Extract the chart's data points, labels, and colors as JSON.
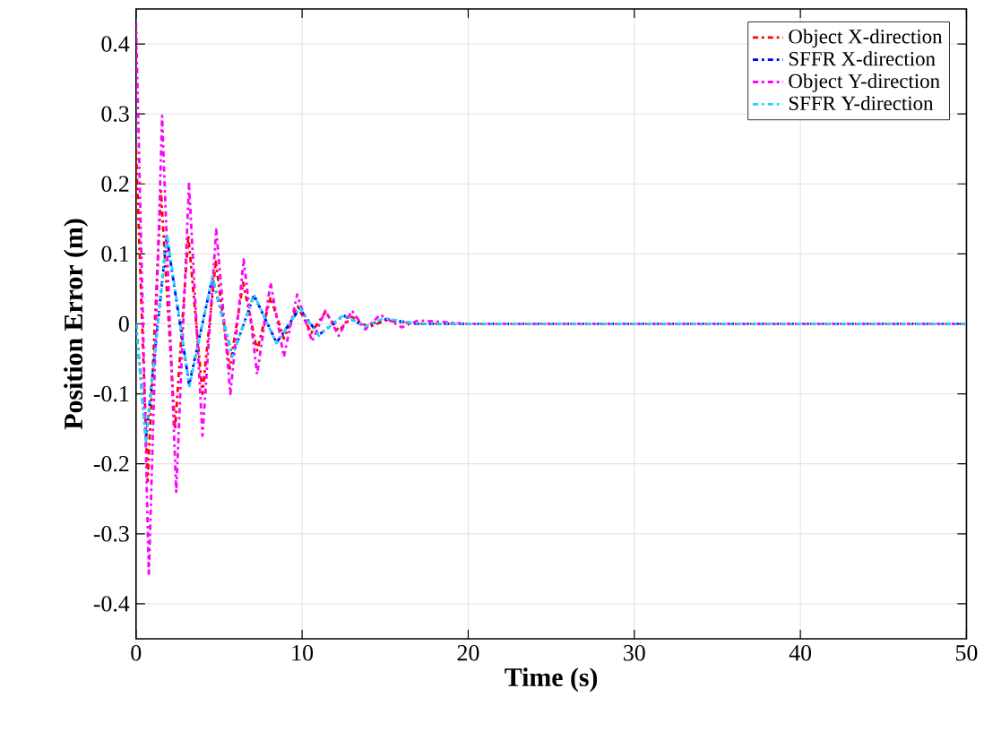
{
  "chart_data": {
    "type": "line",
    "xlabel": "Time (s)",
    "ylabel": "Position Error (m)",
    "xlim": [
      0,
      50
    ],
    "ylim": [
      -0.45,
      0.45
    ],
    "xticks": [
      0,
      10,
      20,
      30,
      40,
      50
    ],
    "yticks": [
      -0.4,
      -0.3,
      -0.2,
      -0.1,
      0,
      0.1,
      0.2,
      0.3,
      0.4
    ],
    "grid": true,
    "legend": "top right",
    "line_style": "dashdot",
    "marker": "none",
    "series": [
      {
        "name": "Object X-direction",
        "color": "#ff0000",
        "x": [
          0,
          0.7,
          1.5,
          2.35,
          3.15,
          4.0,
          4.8,
          5.64,
          6.45,
          7.29,
          8.1,
          8.9,
          9.74,
          10.55,
          11.4,
          12.2,
          13,
          14,
          15,
          17,
          50
        ],
        "values": [
          0.25,
          -0.225,
          0.19,
          -0.15,
          0.127,
          -0.1,
          0.089,
          -0.064,
          0.059,
          -0.038,
          0.038,
          -0.021,
          0.025,
          -0.013,
          0.017,
          -0.01,
          0.01,
          -0.005,
          0.005,
          0,
          0
        ]
      },
      {
        "name": "SFFR X-direction",
        "color": "#0000ff",
        "x": [
          0,
          0.6,
          1.85,
          3.2,
          4.6,
          5.8,
          7.1,
          8.46,
          9.85,
          11.0,
          12.5,
          13.8,
          14.9,
          17,
          50
        ],
        "values": [
          0,
          -0.165,
          0.125,
          -0.087,
          0.066,
          -0.046,
          0.041,
          -0.027,
          0.022,
          -0.016,
          0.012,
          -0.004,
          0.007,
          0,
          0
        ]
      },
      {
        "name": "Object Y-direction",
        "color": "#ff00ff",
        "x": [
          0,
          0.77,
          1.57,
          2.42,
          3.19,
          4.0,
          4.83,
          5.68,
          6.48,
          7.29,
          8.1,
          8.9,
          9.7,
          10.6,
          11.4,
          12.2,
          13.0,
          13.8,
          14.7,
          16,
          17,
          20,
          50
        ],
        "values": [
          0.43,
          -0.36,
          0.297,
          -0.24,
          0.2,
          -0.16,
          0.135,
          -0.1,
          0.092,
          -0.072,
          0.059,
          -0.047,
          0.042,
          -0.025,
          0.019,
          -0.017,
          0.019,
          -0.008,
          0.013,
          -0.005,
          0.005,
          0,
          0
        ]
      },
      {
        "name": "SFFR Y-direction",
        "color": "#22d8f5",
        "x": [
          0,
          0.59,
          1.87,
          3.22,
          4.6,
          5.8,
          7.1,
          8.46,
          9.85,
          11.0,
          12.5,
          13.8,
          14.9,
          17,
          50
        ],
        "values": [
          0,
          -0.17,
          0.127,
          -0.089,
          0.068,
          -0.047,
          0.042,
          -0.028,
          0.023,
          -0.017,
          0.013,
          -0.004,
          0.008,
          0,
          0
        ]
      }
    ]
  }
}
